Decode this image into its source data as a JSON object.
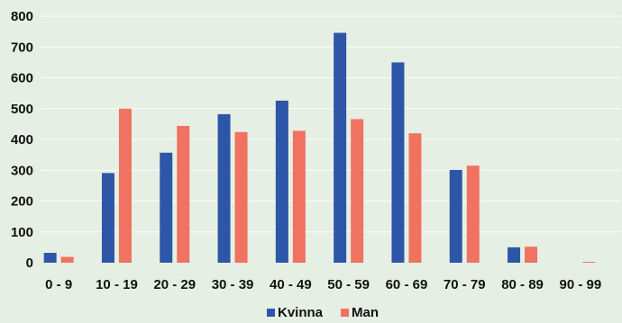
{
  "chart_data": {
    "type": "bar",
    "categories": [
      "0 - 9",
      "10 - 19",
      "20 - 29",
      "30 - 39",
      "40 - 49",
      "50 - 59",
      "60 - 69",
      "70 - 79",
      "80 - 89",
      "90 - 99"
    ],
    "series": [
      {
        "name": "Kvinna",
        "color": "#2e56a8",
        "values": [
          32,
          291,
          357,
          482,
          526,
          746,
          650,
          301,
          50,
          0
        ]
      },
      {
        "name": "Man",
        "color": "#f07261",
        "values": [
          19,
          500,
          444,
          424,
          428,
          466,
          420,
          315,
          52,
          3
        ]
      }
    ],
    "yticks": [
      "0",
      "100",
      "200",
      "300",
      "400",
      "500",
      "600",
      "700",
      "800"
    ],
    "ylim": [
      0,
      800
    ],
    "grid": true,
    "legend": "bottom-center",
    "title": "",
    "xlabel": "",
    "ylabel": ""
  }
}
